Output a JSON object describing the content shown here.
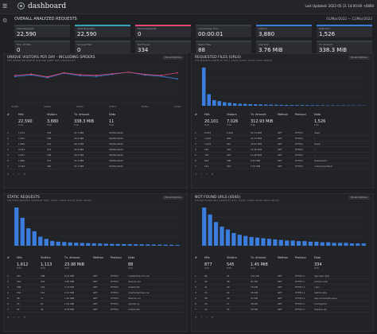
{
  "header": {
    "menu_icon": "hamburger-icon",
    "logo_icon": "goaccess-logo-icon",
    "title": "dashboard",
    "last_updated": "Last Updated: 2022-05-11 14:00:00 +0800"
  },
  "overall": {
    "title": "OVERALL ANALYZED REQUESTS",
    "date_range": "01/Mar/2022 — 11/Mar/2022"
  },
  "cards": [
    {
      "label": "Total Requests",
      "value": "22,590",
      "color": "#3a3d43"
    },
    {
      "label": "Valid Requests",
      "value": "22,590",
      "color": "#2fa6b8"
    },
    {
      "label": "Failed Requests",
      "value": "0",
      "color": "#e0466e"
    },
    {
      "label": "Log Parsing Time",
      "value": "00:00:01",
      "color": "#3a3d43"
    },
    {
      "label": "Visitors",
      "value": "3,880",
      "color": "#3b7ddd"
    },
    {
      "label": "Referrers",
      "value": "1,526",
      "color": "#3b7ddd"
    },
    {
      "label": "Not Found",
      "value": "334",
      "color": "#3a3d43"
    },
    {
      "label": "Static Files",
      "value": "88",
      "color": "#3a3d43"
    },
    {
      "label": "Log Size",
      "value": "3.76 MiB",
      "color": "#3a3d43"
    },
    {
      "label": "Tx. Amount",
      "value": "338.3 MiB",
      "color": "#3a3d43"
    },
    {
      "label": "Excl. IP Hits",
      "value": "0",
      "color": "#3a3d43"
    },
    {
      "label": "Unique Files",
      "value": "0",
      "color": "#3a3d43"
    }
  ],
  "panels": {
    "visitors": {
      "title": "UNIQUE VISITORS PER DAY - INCLUDING SPIDERS",
      "subtitle": "HITS HAVING THE SAME IP, DATE AND AGENT ARE A UNIQUE VISIT.",
      "options": "Panel Options",
      "columns": [
        "#",
        "Hits",
        "Visitors",
        "Tx. Amount",
        "Data"
      ],
      "summary": [
        "22,590",
        "3,880",
        "338.3 MiB",
        "11"
      ],
      "summary_sub": [
        "Total",
        "Total",
        "Total",
        "Total"
      ],
      "rows": [
        [
          "1",
          "1,974",
          "339",
          "31.7 MiB",
          "01/Mar/2022"
        ],
        [
          "2",
          "2,102",
          "356",
          "30.9 MiB",
          "02/Mar/2022"
        ],
        [
          "3",
          "1,895",
          "321",
          "29.3 MiB",
          "03/Mar/2022"
        ],
        [
          "4",
          "2,233",
          "372",
          "32.8 MiB",
          "04/Mar/2022"
        ],
        [
          "5",
          "2,047",
          "348",
          "30.5 MiB",
          "05/Mar/2022"
        ],
        [
          "6",
          "1,986",
          "341",
          "31.2 MiB",
          "06/Mar/2022"
        ],
        [
          "7",
          "2,154",
          "360",
          "32.1 MiB",
          "07/Mar/2022"
        ]
      ]
    },
    "requests": {
      "title": "REQUESTED FILES (URLS)",
      "subtitle": "TOP REQUESTS SORTED BY HITS [, AVGTS, CUMTS, MAXTS, MTHD, PROTO]",
      "options": "Panel Options",
      "columns": [
        "#",
        "Hits",
        "Visitors",
        "Tx. Amount",
        "Method",
        "Protocol",
        "Data"
      ],
      "summary": [
        "20,101",
        "7,026",
        "312.93 MiB",
        "1,526"
      ],
      "summary_sub": [
        "Total",
        "Total",
        "Total",
        "Total"
      ],
      "rows": [
        [
          "1",
          "8,103",
          "1,612",
          "54.79 MiB",
          "GET",
          "HTTP/2",
          "/feed"
        ],
        [
          "2",
          "2,450",
          "839",
          "41.33 MiB",
          "GET",
          "HTTP/2",
          "/"
        ],
        [
          "3",
          "1,203",
          "512",
          "18.22 MiB",
          "GET",
          "HTTP/2",
          "/feed/"
        ],
        [
          "4",
          "987",
          "433",
          "15.40 MiB",
          "GET",
          "HTTP/2",
          "/"
        ],
        [
          "5",
          "756",
          "320",
          "11.08 MiB",
          "GET",
          "HTTP/2",
          "/"
        ],
        [
          "6",
          "642",
          "298",
          "9.87 MiB",
          "GET",
          "HTTP/2",
          "/feed/atom/"
        ],
        [
          "7",
          "511",
          "244",
          "7.61 MiB",
          "GET",
          "HTTP/2",
          "/index.php/feed/"
        ]
      ]
    },
    "static": {
      "title": "STATIC REQUESTS",
      "subtitle": "TOP STATIC REQUESTS SORTED BY HITS [, AVGTS, CUMTS, MAXTS, MTHD, PROTO]",
      "options": "Panel Options",
      "columns": [
        "#",
        "Hits",
        "Visitors",
        "Tx. Amount",
        "Method",
        "Protocol",
        "Data"
      ],
      "summary": [
        "1,612",
        "1,113",
        "23.98 MiB",
        "88"
      ],
      "summary_sub": [
        "Total",
        "Total",
        "Total",
        "Total"
      ],
      "rows": [
        [
          "1",
          "412",
          "288",
          "6.12 MiB",
          "GET",
          "HTTP/2",
          "/css/theme.min.css"
        ],
        [
          "2",
          "301",
          "219",
          "4.85 MiB",
          "GET",
          "HTTP/2",
          "/favicon.ico"
        ],
        [
          "3",
          "188",
          "142",
          "2.73 MiB",
          "GET",
          "HTTP/2",
          "/robots.txt"
        ],
        [
          "4",
          "156",
          "121",
          "2.11 MiB",
          "GET",
          "HTTP/2",
          "/css/fonts/main.css"
        ],
        [
          "5",
          "98",
          "77",
          "1.40 MiB",
          "GET",
          "HTTP/2",
          "/favicon.ico"
        ],
        [
          "6",
          "74",
          "61",
          "1.02 MiB",
          "GET",
          "HTTP/2",
          "/js/main.js"
        ],
        [
          "7",
          "52",
          "44",
          "0.78 MiB",
          "GET",
          "HTTP/2",
          "/robots.txt"
        ]
      ]
    },
    "notfound": {
      "title": "NOT FOUND URLS (404S)",
      "subtitle": "TOP NOT FOUND URLS SORTED BY HITS [, AVGTS, CUMTS, MAXTS, MTHD, PROTO]",
      "options": "Panel Options",
      "columns": [
        "#",
        "Hits",
        "Visitors",
        "Tx. Amount",
        "Method",
        "Protocol",
        "Data"
      ],
      "summary": [
        "877",
        "545",
        "1.45 MiB",
        "334"
      ],
      "summary_sub": [
        "Total",
        "Total",
        "Total",
        "Total"
      ],
      "rows": [
        [
          "1",
          "66",
          "41",
          "112 KiB",
          "GET",
          "HTTP/1.1",
          "/wp-login.php"
        ],
        [
          "2",
          "54",
          "38",
          "91 KiB",
          "GET",
          "HTTP/1.1",
          "/xmlrpc.php"
        ],
        [
          "3",
          "41",
          "29",
          "70 KiB",
          "GET",
          "HTTP/1.1",
          "/.env"
        ],
        [
          "4",
          "33",
          "24",
          "56 KiB",
          "GET",
          "HTTP/1.1",
          "/admin.php"
        ],
        [
          "5",
          "28",
          "20",
          "47 KiB",
          "GET",
          "HTTP/1.1",
          "/wp-content/plugins/"
        ],
        [
          "6",
          "22",
          "17",
          "38 KiB",
          "GET",
          "HTTP/1.1",
          "/config.php"
        ],
        [
          "7",
          "19",
          "15",
          "32 KiB",
          "GET",
          "HTTP/1.1",
          "/backup.zip"
        ]
      ]
    }
  },
  "pager": {
    "first": "«",
    "prev": "‹",
    "next": "›",
    "last": "»"
  },
  "chart_data": [
    {
      "type": "line",
      "x": [
        "01/Mar",
        "02/Mar",
        "03/Mar",
        "04/Mar",
        "05/Mar",
        "06/Mar",
        "07/Mar",
        "08/Mar",
        "09/Mar",
        "10/Mar",
        "11/Mar"
      ],
      "series": [
        {
          "name": "Hits",
          "values": [
            1974,
            2102,
            1895,
            2233,
            2047,
            1986,
            2154,
            2311,
            2090,
            1998,
            1800
          ]
        },
        {
          "name": "Visitors",
          "values": [
            339,
            356,
            321,
            372,
            348,
            341,
            360,
            380,
            352,
            340,
            371
          ]
        }
      ],
      "colors": [
        "#3b7ddd",
        "#e0466e"
      ]
    },
    {
      "type": "bar",
      "values": [
        8103,
        2450,
        1203,
        987,
        756,
        642,
        511,
        430,
        390,
        350,
        310,
        280,
        250,
        230,
        210,
        190,
        170,
        160,
        150,
        140,
        130,
        120,
        110,
        100,
        95,
        90,
        85,
        80,
        75,
        70,
        65,
        60
      ],
      "color": "#3b7ddd"
    },
    {
      "type": "bar",
      "values": [
        412,
        301,
        188,
        156,
        98,
        74,
        52,
        44,
        40,
        36,
        33,
        30,
        28,
        26,
        24,
        22,
        20,
        19,
        18,
        17,
        16,
        15,
        14,
        13,
        12,
        11,
        10,
        9
      ],
      "color": "#3b7ddd"
    },
    {
      "type": "bar",
      "values": [
        66,
        54,
        41,
        33,
        28,
        22,
        19,
        17,
        15,
        14,
        13,
        12,
        11,
        10,
        9,
        9,
        8,
        8,
        7,
        7,
        6,
        6,
        5,
        5,
        5,
        4,
        4,
        4
      ],
      "color": "#3b7ddd"
    }
  ]
}
